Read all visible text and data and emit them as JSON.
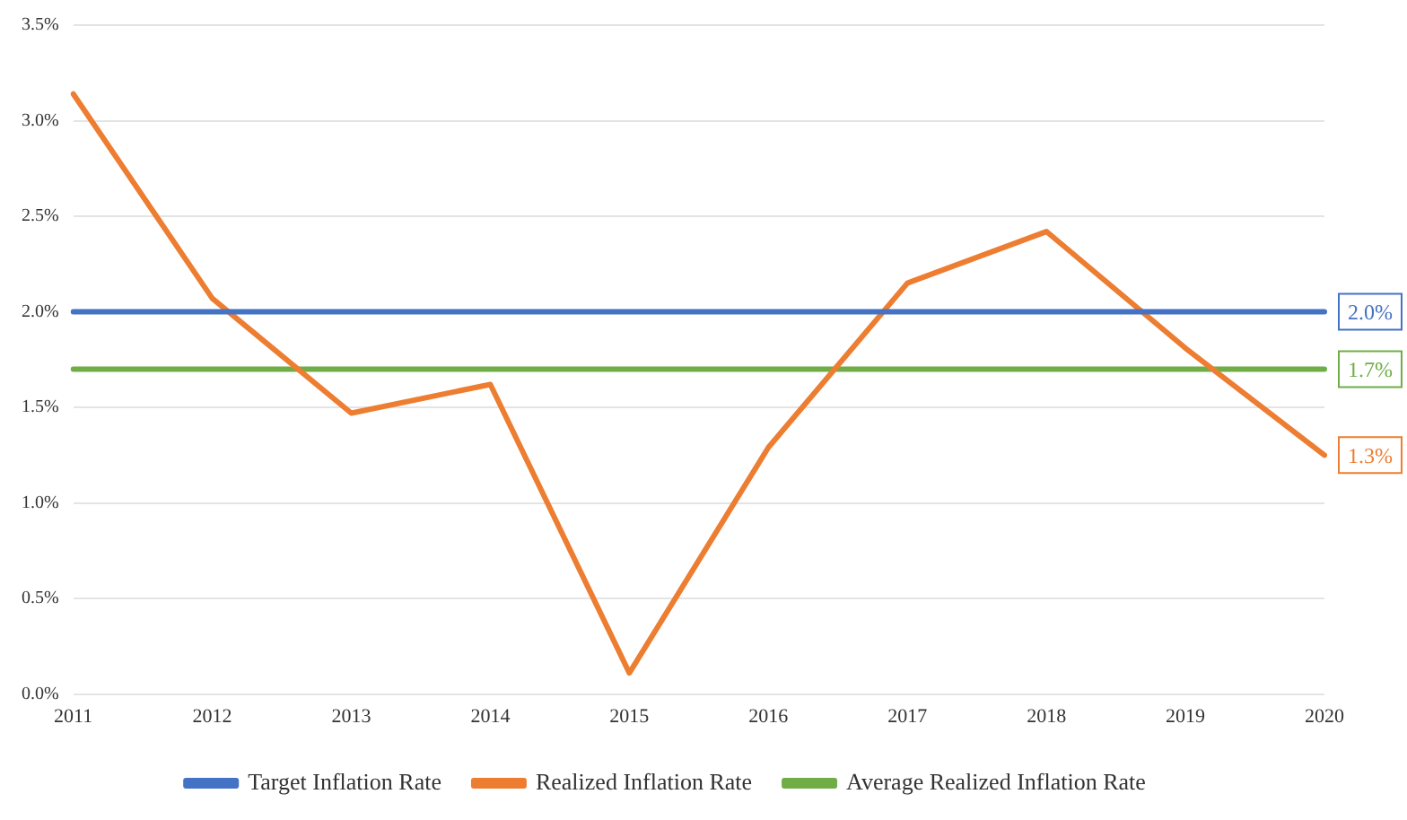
{
  "chart_data": {
    "type": "line",
    "categories": [
      "2011",
      "2012",
      "2013",
      "2014",
      "2015",
      "2016",
      "2017",
      "2018",
      "2019",
      "2020"
    ],
    "series": [
      {
        "name": "Target Inflation Rate",
        "color": "#4472c4",
        "values": [
          2.0,
          2.0,
          2.0,
          2.0,
          2.0,
          2.0,
          2.0,
          2.0,
          2.0,
          2.0
        ],
        "value_labels": [
          null,
          null,
          null,
          null,
          null,
          null,
          null,
          null,
          null,
          "2.0%"
        ]
      },
      {
        "name": "Realized Inflation Rate",
        "color": "#ed7d31",
        "values": [
          3.14,
          2.07,
          1.47,
          1.62,
          0.11,
          1.29,
          2.15,
          2.42,
          1.81,
          1.25
        ],
        "value_labels": [
          null,
          null,
          null,
          null,
          null,
          null,
          null,
          null,
          null,
          "1.3%"
        ]
      },
      {
        "name": "Average Realized Inflation Rate",
        "color": "#70ad47",
        "values": [
          1.7,
          1.7,
          1.7,
          1.7,
          1.7,
          1.7,
          1.7,
          1.7,
          1.7,
          1.7
        ],
        "value_labels": [
          null,
          null,
          null,
          null,
          null,
          null,
          null,
          null,
          null,
          "1.7%"
        ]
      }
    ],
    "ylim": [
      0,
      3.5
    ],
    "yticks": [
      {
        "value": 0,
        "label": "0.0%"
      },
      {
        "value": 0.5,
        "label": "0.5%"
      },
      {
        "value": 1,
        "label": "1.0%"
      },
      {
        "value": 1.5,
        "label": "1.5%"
      },
      {
        "value": 2,
        "label": "2.0%"
      },
      {
        "value": 2.5,
        "label": "2.5%"
      },
      {
        "value": 3,
        "label": "3.0%"
      },
      {
        "value": 3.5,
        "label": "3.5%"
      }
    ],
    "grid": "y",
    "legend": "bottom",
    "marker": "none",
    "line_style": "solid"
  }
}
